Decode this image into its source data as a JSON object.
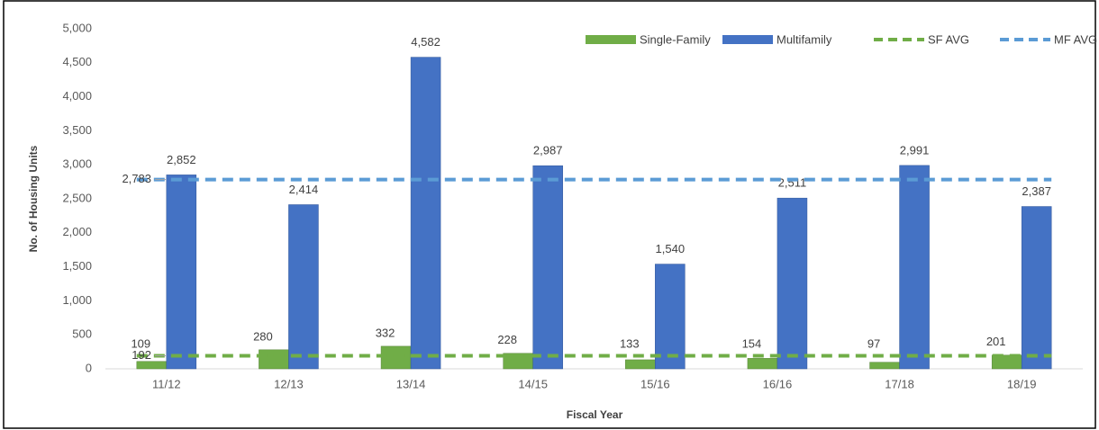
{
  "chart_data": {
    "type": "bar",
    "categories": [
      "11/12",
      "12/13",
      "13/14",
      "14/15",
      "15/16",
      "16/16",
      "17/18",
      "18/19"
    ],
    "series": [
      {
        "name": "Single-Family",
        "color": "#70ad47",
        "values": [
          109,
          280,
          332,
          228,
          133,
          154,
          97,
          201
        ]
      },
      {
        "name": "Multifamily",
        "color": "#4472c4",
        "values": [
          2852,
          2414,
          4582,
          2987,
          1540,
          2511,
          2991,
          2387
        ],
        "value_labels": [
          "2,852",
          "2,414",
          "4,582",
          "2,987",
          "1,540",
          "2,511",
          "2,991",
          "2,387"
        ]
      }
    ],
    "averages": [
      {
        "name": "SF AVG",
        "color": "#70ad47",
        "value": 192
      },
      {
        "name": "MF AVG",
        "color": "#5b9bd5",
        "value": 2783,
        "value_label": "2,783"
      }
    ],
    "ylabel": "No. of Housing Units",
    "xlabel": "Fiscal Year",
    "ylim": [
      0,
      5000
    ],
    "yticks": [
      0,
      500,
      {
        "value": 1000,
        "label": "1,000"
      },
      {
        "value": 1500,
        "label": "1,500"
      },
      {
        "value": 2000,
        "label": "2,000"
      },
      {
        "value": 2500,
        "label": "2,500"
      },
      {
        "value": 3000,
        "label": "3,000"
      },
      {
        "value": 3500,
        "label": "3,500"
      },
      {
        "value": 4000,
        "label": "4,000"
      },
      {
        "value": 4500,
        "label": "4,500"
      },
      {
        "value": 5000,
        "label": "5,000"
      }
    ],
    "legend": "top-right"
  }
}
